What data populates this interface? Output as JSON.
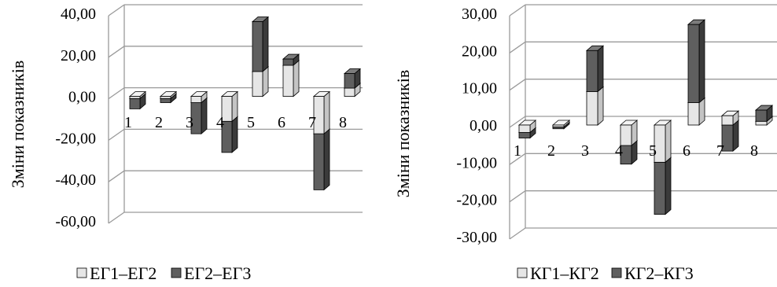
{
  "colors": {
    "light_front": "#e6e6e6",
    "light_side": "#c4c4c4",
    "light_top": "#f4f4f4",
    "dark_front": "#5f5f5f",
    "dark_side": "#3b3b3b",
    "dark_top": "#7c7c7c",
    "grid": "#9a9a9a",
    "edge": "#000000"
  },
  "chart_data": [
    {
      "type": "bar",
      "stacked": true,
      "three_d": true,
      "ylabel": "Зміни показників",
      "ylim": [
        -60,
        40
      ],
      "ytick_step": 20,
      "ytick_labels": [
        "40,00",
        "20,00",
        "0,00",
        "-20,00",
        "-40,00",
        "-60,00"
      ],
      "categories": [
        "1",
        "2",
        "3",
        "4",
        "5",
        "6",
        "7",
        "8"
      ],
      "series": [
        {
          "name": "ЕГ1–ЕГ2",
          "values": [
            -1,
            -1,
            -3,
            -12,
            12,
            15,
            -18,
            4
          ]
        },
        {
          "name": "ЕГ2–ЕГ3",
          "values": [
            -5,
            -2,
            -15,
            -15,
            24,
            3,
            -27,
            7
          ]
        }
      ],
      "legend": "bottom"
    },
    {
      "type": "bar",
      "stacked": true,
      "three_d": true,
      "ylabel": "Зміни показників",
      "ylim": [
        -30,
        30
      ],
      "ytick_step": 10,
      "ytick_labels": [
        "30,00",
        "20,00",
        "10,00",
        "0,00",
        "-10,00",
        "-20,00",
        "-30,00"
      ],
      "categories": [
        "1",
        "2",
        "3",
        "4",
        "5",
        "6",
        "7",
        "8"
      ],
      "series": [
        {
          "name": "КГ1–КГ2",
          "values": [
            -2,
            -0.5,
            9,
            -5.5,
            -10,
            6,
            2.5,
            1
          ]
        },
        {
          "name": "КГ2–КГ3",
          "values": [
            -1.5,
            -0.5,
            11,
            -5,
            -14,
            21,
            -7,
            3
          ]
        }
      ],
      "legend": "bottom"
    }
  ]
}
